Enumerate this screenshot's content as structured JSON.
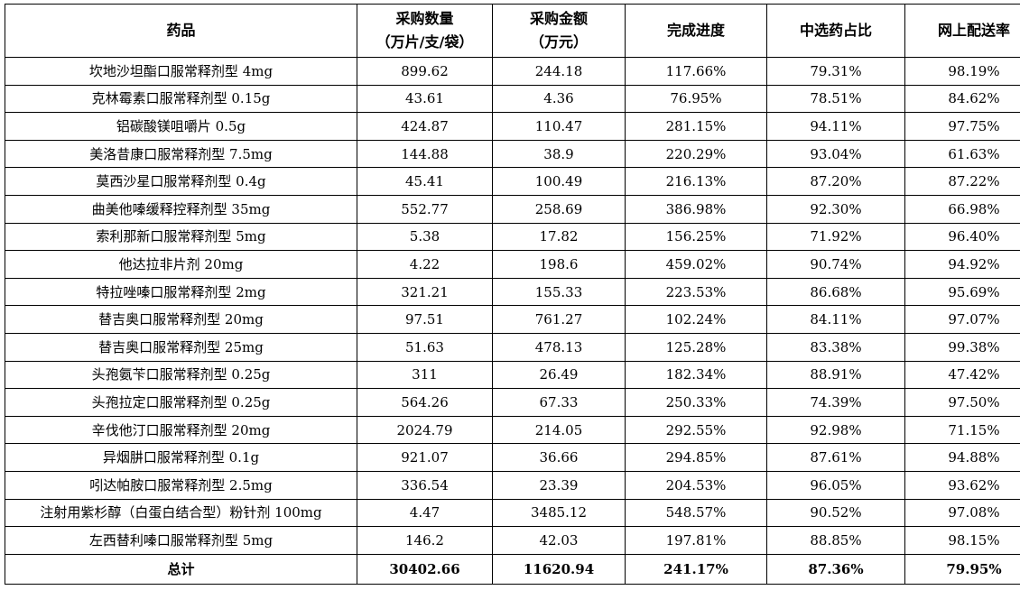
{
  "headers": {
    "drug": "药品",
    "qty_line1": "采购数量",
    "qty_line2": "（万片/支/袋）",
    "amount_line1": "采购金额",
    "amount_line2": "（万元）",
    "progress": "完成进度",
    "selected_ratio": "中选药占比",
    "delivery_rate": "网上配送率"
  },
  "rows": [
    {
      "drug": "坎地沙坦酯口服常释剂型 4mg",
      "qty": "899.62",
      "amount": "244.18",
      "progress": "117.66%",
      "ratio": "79.31%",
      "delivery": "98.19%"
    },
    {
      "drug": "克林霉素口服常释剂型 0.15g",
      "qty": "43.61",
      "amount": "4.36",
      "progress": "76.95%",
      "ratio": "78.51%",
      "delivery": "84.62%"
    },
    {
      "drug": "铝碳酸镁咀嚼片 0.5g",
      "qty": "424.87",
      "amount": "110.47",
      "progress": "281.15%",
      "ratio": "94.11%",
      "delivery": "97.75%"
    },
    {
      "drug": "美洛昔康口服常释剂型 7.5mg",
      "qty": "144.88",
      "amount": "38.9",
      "progress": "220.29%",
      "ratio": "93.04%",
      "delivery": "61.63%"
    },
    {
      "drug": "莫西沙星口服常释剂型 0.4g",
      "qty": "45.41",
      "amount": "100.49",
      "progress": "216.13%",
      "ratio": "87.20%",
      "delivery": "87.22%"
    },
    {
      "drug": "曲美他嗪缓释控释剂型 35mg",
      "qty": "552.77",
      "amount": "258.69",
      "progress": "386.98%",
      "ratio": "92.30%",
      "delivery": "66.98%"
    },
    {
      "drug": "索利那新口服常释剂型 5mg",
      "qty": "5.38",
      "amount": "17.82",
      "progress": "156.25%",
      "ratio": "71.92%",
      "delivery": "96.40%"
    },
    {
      "drug": "他达拉非片剂 20mg",
      "qty": "4.22",
      "amount": "198.6",
      "progress": "459.02%",
      "ratio": "90.74%",
      "delivery": "94.92%"
    },
    {
      "drug": "特拉唑嗪口服常释剂型 2mg",
      "qty": "321.21",
      "amount": "155.33",
      "progress": "223.53%",
      "ratio": "86.68%",
      "delivery": "95.69%"
    },
    {
      "drug": "替吉奥口服常释剂型 20mg",
      "qty": "97.51",
      "amount": "761.27",
      "progress": "102.24%",
      "ratio": "84.11%",
      "delivery": "97.07%"
    },
    {
      "drug": "替吉奥口服常释剂型 25mg",
      "qty": "51.63",
      "amount": "478.13",
      "progress": "125.28%",
      "ratio": "83.38%",
      "delivery": "99.38%"
    },
    {
      "drug": "头孢氨苄口服常释剂型 0.25g",
      "qty": "311",
      "amount": "26.49",
      "progress": "182.34%",
      "ratio": "88.91%",
      "delivery": "47.42%"
    },
    {
      "drug": "头孢拉定口服常释剂型 0.25g",
      "qty": "564.26",
      "amount": "67.33",
      "progress": "250.33%",
      "ratio": "74.39%",
      "delivery": "97.50%"
    },
    {
      "drug": "辛伐他汀口服常释剂型 20mg",
      "qty": "2024.79",
      "amount": "214.05",
      "progress": "292.55%",
      "ratio": "92.98%",
      "delivery": "71.15%"
    },
    {
      "drug": "异烟肼口服常释剂型 0.1g",
      "qty": "921.07",
      "amount": "36.66",
      "progress": "294.85%",
      "ratio": "87.61%",
      "delivery": "94.88%"
    },
    {
      "drug": "吲达帕胺口服常释剂型 2.5mg",
      "qty": "336.54",
      "amount": "23.39",
      "progress": "204.53%",
      "ratio": "96.05%",
      "delivery": "93.62%"
    },
    {
      "drug": "注射用紫杉醇（白蛋白结合型）粉针剂 100mg",
      "qty": "4.47",
      "amount": "3485.12",
      "progress": "548.57%",
      "ratio": "90.52%",
      "delivery": "97.08%"
    },
    {
      "drug": "左西替利嗪口服常释剂型 5mg",
      "qty": "146.2",
      "amount": "42.03",
      "progress": "197.81%",
      "ratio": "88.85%",
      "delivery": "98.15%"
    }
  ],
  "total": {
    "label": "总计",
    "qty": "30402.66",
    "amount": "11620.94",
    "progress": "241.17%",
    "ratio": "87.36%",
    "delivery": "79.95%"
  }
}
